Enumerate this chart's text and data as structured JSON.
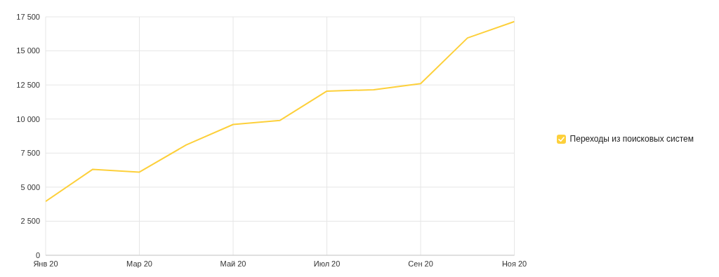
{
  "chart_data": {
    "type": "line",
    "categories": [
      "Янв 20",
      null,
      "Мар 20",
      null,
      "Май 20",
      null,
      "Июл 20",
      null,
      "Сен 20",
      null,
      "Ноя 20"
    ],
    "series": [
      {
        "name": "Переходы из поисковых систем",
        "color": "#fdd03b",
        "values": [
          3950,
          6300,
          6100,
          8100,
          9600,
          9900,
          12050,
          12150,
          12600,
          15950,
          17150
        ]
      }
    ],
    "ylim": [
      0,
      17500
    ],
    "yticks": [
      0,
      {
        "value": 2500,
        "label": "2 500"
      },
      {
        "value": 5000,
        "label": "5 000"
      },
      {
        "value": 7500,
        "label": "7 500"
      },
      {
        "value": 10000,
        "label": "10 000"
      },
      {
        "value": 12500,
        "label": "12 500"
      },
      {
        "value": 15000,
        "label": "15 000"
      },
      {
        "value": 17500,
        "label": "17 500"
      }
    ],
    "grid": true,
    "legend": "right",
    "marker": "none",
    "line_style": "solid"
  }
}
